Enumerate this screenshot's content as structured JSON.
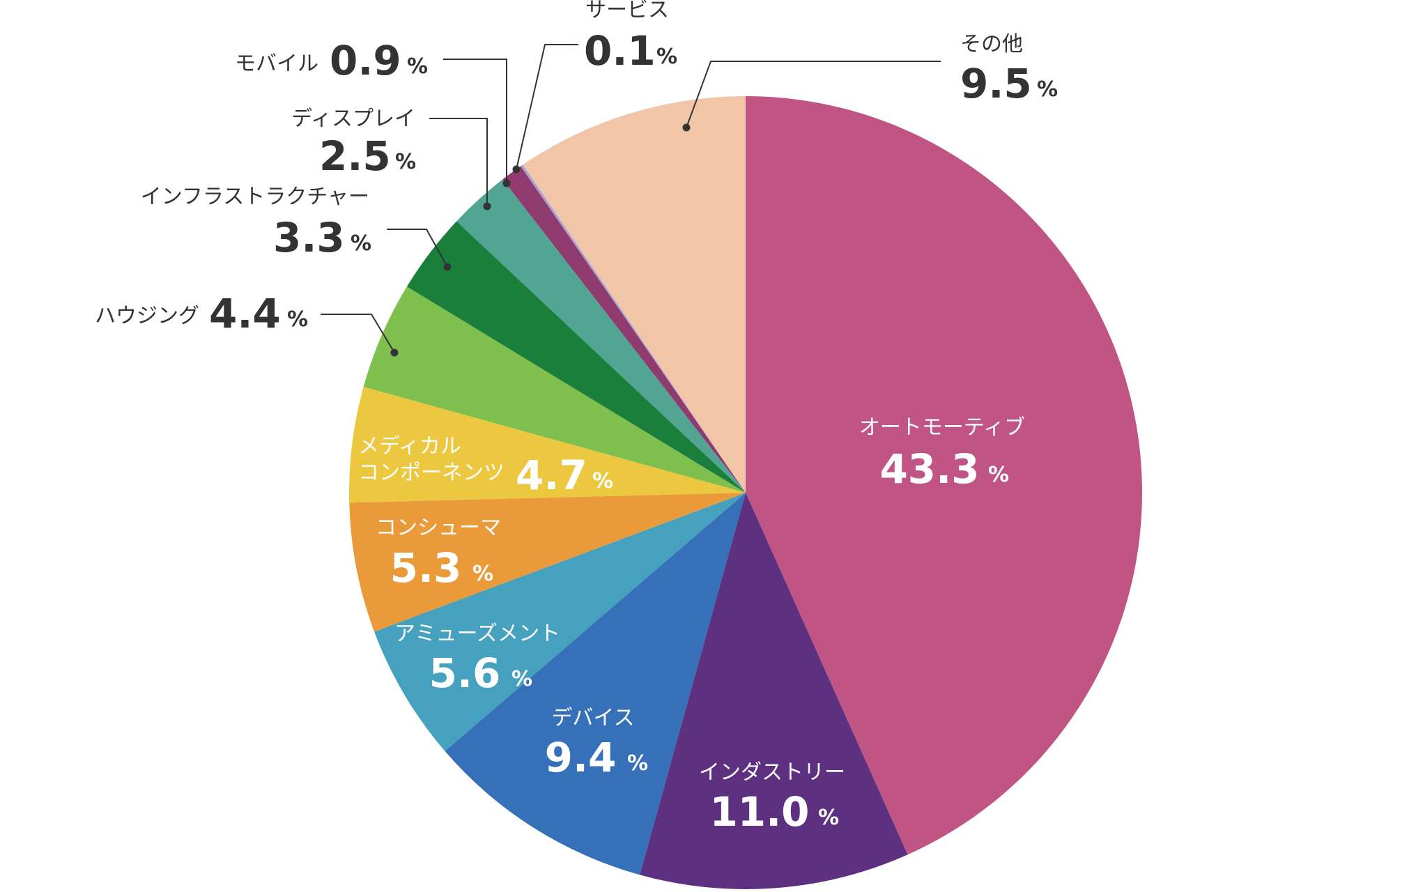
{
  "chart_data": {
    "type": "pie",
    "unit": "%",
    "slices": [
      {
        "label": "オートモーティブ",
        "value": 43.3,
        "value_text": "43.3",
        "color": "#C05484"
      },
      {
        "label": "インダストリー",
        "value": 11.0,
        "value_text": "11.0",
        "color": "#5E3180"
      },
      {
        "label": "デバイス",
        "value": 9.4,
        "value_text": "9.4",
        "color": "#3570B8"
      },
      {
        "label": "アミューズメント",
        "value": 5.6,
        "value_text": "5.6",
        "color": "#45A1BD"
      },
      {
        "label": "コンシューマ",
        "value": 5.3,
        "value_text": "5.3",
        "color": "#EB9A3A"
      },
      {
        "label": "メディカル\nコンポーネンツ",
        "value": 4.7,
        "value_text": "4.7",
        "color": "#EBC840"
      },
      {
        "label": "ハウジング",
        "value": 4.4,
        "value_text": "4.4",
        "color": "#7FBF4D"
      },
      {
        "label": "インフラストラクチャー",
        "value": 3.3,
        "value_text": "3.3",
        "color": "#1A7F3A"
      },
      {
        "label": "ディスプレイ",
        "value": 2.5,
        "value_text": "2.5",
        "color": "#52A593"
      },
      {
        "label": "モバイル",
        "value": 0.9,
        "value_text": "0.9",
        "color": "#8F3B6F"
      },
      {
        "label": "サービス",
        "value": 0.1,
        "value_text": "0.1",
        "color": "#A7A0D2"
      },
      {
        "label": "その他",
        "value": 9.5,
        "value_text": "9.5",
        "color": "#F0C5A8"
      }
    ]
  }
}
